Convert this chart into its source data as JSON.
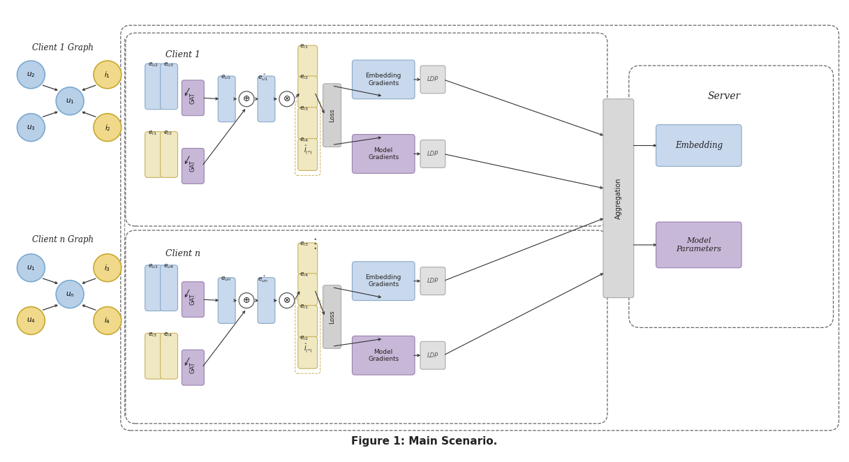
{
  "title": "Figure 1: Main Scenario.",
  "bg_color": "#ffffff",
  "client1_graph_title": "Client 1 Graph",
  "clientn_graph_title": "Client n Graph",
  "node_blue_color": "#b8cfe8",
  "node_yellow_color": "#f0d98a",
  "node_border_blue": "#7aaad0",
  "node_border_yellow": "#c8a830",
  "box_blue_light": "#c8d8ed",
  "box_blue_border": "#8aaac8",
  "box_yellow_light": "#f0e8c0",
  "box_yellow_border": "#c8b060",
  "gat_color": "#c8b8d8",
  "gat_border": "#9a80b0",
  "loss_color": "#d0d0d0",
  "loss_border": "#aaaaaa",
  "embed_grad_color": "#c8d8ed",
  "embed_grad_border": "#8aaac8",
  "model_grad_color": "#c8b8d8",
  "model_grad_border": "#9a80b0",
  "ldp_color": "#e0e0e0",
  "ldp_border": "#aaaaaa",
  "embedding_color": "#c8d8ed",
  "embedding_border": "#8aaac8",
  "model_params_color": "#c8b8d8",
  "model_params_border": "#9a80b0",
  "aggregation_color": "#d8d8d8",
  "aggregation_border": "#aaaaaa",
  "outer_dashed_color": "#666666",
  "client_dashed_color": "#666666",
  "server_dashed_color": "#666666",
  "arrow_color": "#333333"
}
